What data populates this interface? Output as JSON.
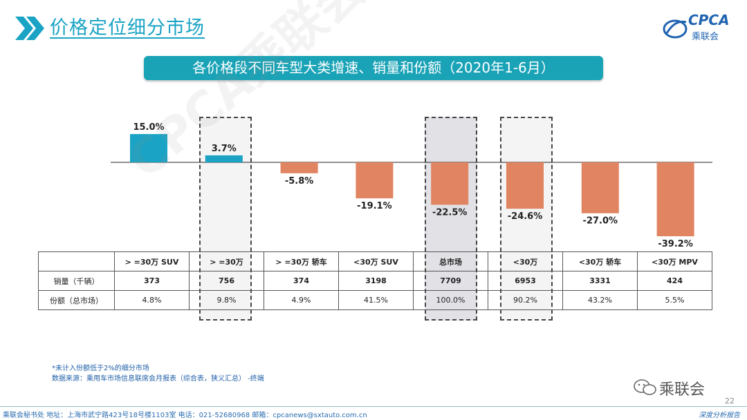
{
  "header": {
    "title": "价格定位细分市场"
  },
  "logo": {
    "text": "CPCA",
    "sub": "乘联会"
  },
  "banner": {
    "title": "各价格段不同车型大类增速、销量和份额（2020年1-6月）"
  },
  "colors": {
    "positive": "#1aa3c4",
    "negative": "#e08462",
    "accent": "#1aa3b7"
  },
  "chart_data": {
    "type": "bar",
    "categories": [
      ">=30万 SUV",
      ">=30万",
      ">=30万 轿车",
      "<30万 SUV",
      "总市场",
      "<30万",
      "<30万 轿车",
      "<30万 MPV"
    ],
    "values": [
      15.0,
      3.7,
      -5.8,
      -19.1,
      -22.5,
      -24.6,
      -27.0,
      -39.2
    ],
    "labels": [
      "15.0%",
      "3.7%",
      "-5.8%",
      "-19.1%",
      "-22.5%",
      "-24.6%",
      "-27.0%",
      "-39.2%"
    ],
    "unit": "%",
    "highlighted": [
      ">=30万",
      "总市场",
      "<30万"
    ]
  },
  "table": {
    "headers": [
      "> =30万 SUV",
      "> =30万",
      "> =30万 轿车",
      "<30万 SUV",
      "总市场",
      "<30万",
      "<30万 轿车",
      "<30万 MPV"
    ],
    "rows": [
      {
        "label": "销量（千辆）",
        "values": [
          "373",
          "756",
          "374",
          "3198",
          "7709",
          "6953",
          "3331",
          "424"
        ]
      },
      {
        "label": "份额（总市场）",
        "values": [
          "4.8%",
          "9.8%",
          "4.9%",
          "41.5%",
          "100.0%",
          "90.2%",
          "43.2%",
          "5.5%"
        ]
      }
    ]
  },
  "watermark": "CPCA乘联会",
  "notes": {
    "line1": "*未计入份额低于2%的细分市场",
    "line2": "数据来源：乘用车市场信息联席会月报表（综合表，狭义汇总）  -终端"
  },
  "wechat": {
    "name": "乘联会"
  },
  "page_number": "22",
  "footer": {
    "left": "乘联会秘书处   地址：上海市武宁路423号18号楼1103室   电话：021-52680968    邮箱：cpcanews@sxtauto.com.cn",
    "right": "深度分析报告"
  }
}
